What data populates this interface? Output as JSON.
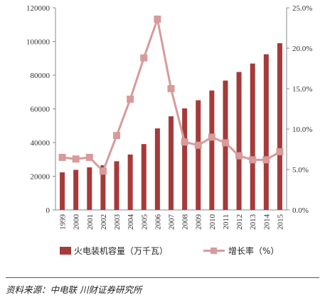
{
  "chart_data": {
    "type": "bar+line",
    "categories": [
      "1999",
      "2000",
      "2001",
      "2002",
      "2003",
      "2004",
      "2005",
      "2006",
      "2007",
      "2008",
      "2009",
      "2010",
      "2011",
      "2012",
      "2013",
      "2014",
      "2015"
    ],
    "series": [
      {
        "name": "火电装机容量（万千瓦）",
        "kind": "bar",
        "axis": "left",
        "color": "#A63A3A",
        "values": [
          22300,
          23800,
          25300,
          26500,
          28900,
          32900,
          39100,
          48400,
          55600,
          60300,
          65100,
          70900,
          76800,
          81900,
          86900,
          92400,
          99000
        ]
      },
      {
        "name": "增长率（%）",
        "kind": "line",
        "axis": "right",
        "color": "#D89A9A",
        "values": [
          6.5,
          6.3,
          6.5,
          4.8,
          9.2,
          13.7,
          18.8,
          23.6,
          15.0,
          8.4,
          8.0,
          9.0,
          8.3,
          6.7,
          6.2,
          6.2,
          7.2
        ]
      }
    ],
    "left_axis": {
      "min": 0,
      "max": 120000,
      "ticks": [
        "0",
        "20000",
        "40000",
        "60000",
        "80000",
        "100000",
        "120000"
      ]
    },
    "right_axis": {
      "min": 0,
      "max": 25,
      "ticks": [
        "0.0%",
        "5.0%",
        "10.0%",
        "15.0%",
        "20.0%",
        "25.0%"
      ]
    },
    "legend_position": "bottom",
    "grid": false
  },
  "source_text": "资料来源：中电联 川财证券研究所"
}
